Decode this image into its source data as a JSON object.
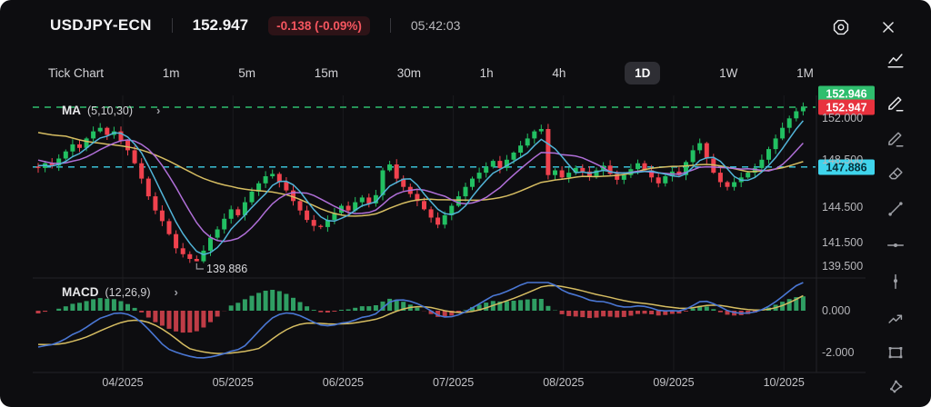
{
  "header": {
    "symbol": "USDJPY-ECN",
    "price": "152.947",
    "change": "-0.138 (-0.09%)",
    "time": "05:42:03"
  },
  "tabs": {
    "items": [
      "Tick Chart",
      "1m",
      "5m",
      "15m",
      "30m",
      "1h",
      "4h",
      "1D",
      "1W",
      "1M"
    ],
    "active": "1D"
  },
  "indicators": {
    "ma": {
      "name": "MA",
      "params": "(5,10,30)"
    },
    "macd": {
      "name": "MACD",
      "params": "(12,26,9)"
    }
  },
  "icons": {
    "chevron": "›"
  },
  "levels": {
    "alert_label": "152.946",
    "last_label": "152.947",
    "support_label": "147.886",
    "low_label": "139.886"
  },
  "axis": {
    "price_ticks": [
      "152.000",
      "148.500",
      "144.500",
      "141.500",
      "139.500"
    ],
    "macd_ticks": [
      "0.000",
      "-2.000"
    ],
    "months": [
      "04/2025",
      "05/2025",
      "06/2025",
      "07/2025",
      "08/2025",
      "09/2025",
      "10/2025"
    ]
  },
  "side_toolbar": {
    "items": [
      {
        "name": "chart-type-icon",
        "icon": "chart-line",
        "bright": true
      },
      {
        "name": "draw-pencil-icon",
        "icon": "pencil",
        "bright": true
      },
      {
        "name": "highlighter-pencil-icon",
        "icon": "pencil",
        "bright": false
      },
      {
        "name": "eraser-icon",
        "icon": "eraser",
        "bright": false
      },
      {
        "name": "trend-line-icon",
        "icon": "trend-line",
        "bright": false
      },
      {
        "name": "horizontal-line-icon",
        "icon": "horizontal-line",
        "bright": false
      },
      {
        "name": "vertical-line-icon",
        "icon": "vertical-line",
        "bright": false
      },
      {
        "name": "arrow-mark-icon",
        "icon": "arrow-mark",
        "bright": false
      },
      {
        "name": "rectangle-icon",
        "icon": "rectangle",
        "bright": false
      },
      {
        "name": "polygon-icon",
        "icon": "polygon",
        "bright": false
      }
    ]
  },
  "chart_data": {
    "type": "candlestick",
    "symbol": "USDJPY-ECN",
    "interval": "1D",
    "title": "USDJPY daily candles with MA(5,10,30) overlay and MACD(12,26,9) pane",
    "x_months": [
      "04/2025",
      "05/2025",
      "06/2025",
      "07/2025",
      "08/2025",
      "09/2025",
      "10/2025"
    ],
    "price_axis_ticks": [
      152.0,
      148.5,
      144.5,
      141.5,
      139.5
    ],
    "macd_axis_ticks": [
      0.0,
      -2.0
    ],
    "levels": {
      "alert_high": 152.946,
      "last": 152.947,
      "support": 147.886,
      "low": 139.886
    },
    "ma_periods": [
      5,
      10,
      30
    ],
    "macd_params": [
      12,
      26,
      9
    ],
    "colors": {
      "candle_up": "#22c062",
      "candle_down": "#f0424e",
      "ma5": "#52b5d9",
      "ma10": "#b06fd8",
      "ma30": "#d6bd62",
      "macd_line": "#4a77d4",
      "signal_line": "#d6bd62",
      "hist_up": "#2f9e63",
      "hist_down": "#bf3c46",
      "alert_line": "#2fbe6e",
      "support_line": "#3fd0e8",
      "alert_badge": "#2fbe6e",
      "last_badge": "#e8323e",
      "support_badge": "#3fd4ec"
    },
    "warmup_closes": [
      154.5,
      154.2,
      153.9,
      153.6,
      153.3,
      153.0,
      152.7,
      152.4,
      152.1,
      151.8,
      151.5,
      151.2,
      150.9,
      150.6,
      150.3,
      150.0,
      149.6,
      149.2,
      148.9,
      148.6,
      148.4,
      148.2,
      148.1,
      148.0,
      147.9
    ],
    "closes": [
      147.8,
      148.2,
      148.0,
      148.6,
      149.2,
      149.8,
      149.5,
      150.3,
      150.9,
      151.2,
      150.6,
      150.9,
      150.1,
      149.3,
      148.2,
      146.9,
      145.4,
      144.2,
      143.3,
      142.2,
      141.0,
      140.5,
      140.1,
      139.9,
      140.8,
      141.9,
      142.6,
      143.5,
      144.3,
      143.8,
      144.9,
      145.8,
      146.5,
      147.1,
      147.3,
      146.6,
      145.9,
      145.0,
      144.2,
      143.4,
      142.9,
      142.8,
      143.4,
      144.0,
      144.6,
      144.2,
      144.9,
      145.3,
      144.8,
      145.5,
      147.6,
      148.1,
      146.9,
      146.2,
      145.6,
      145.0,
      144.3,
      143.6,
      143.0,
      143.8,
      144.6,
      145.4,
      146.2,
      146.9,
      147.4,
      147.9,
      148.4,
      147.8,
      148.5,
      149.1,
      149.7,
      150.3,
      150.9,
      151.1,
      147.2,
      147.6,
      147.0,
      147.4,
      147.8,
      147.5,
      147.1,
      147.6,
      148.0,
      147.3,
      146.8,
      147.2,
      147.7,
      148.2,
      147.6,
      147.0,
      146.5,
      147.1,
      147.5,
      147.2,
      148.3,
      149.3,
      149.9,
      148.6,
      147.4,
      146.6,
      146.2,
      146.6,
      147.0,
      147.4,
      147.8,
      148.5,
      149.4,
      150.3,
      151.2,
      152.0,
      152.6,
      152.9
    ]
  }
}
